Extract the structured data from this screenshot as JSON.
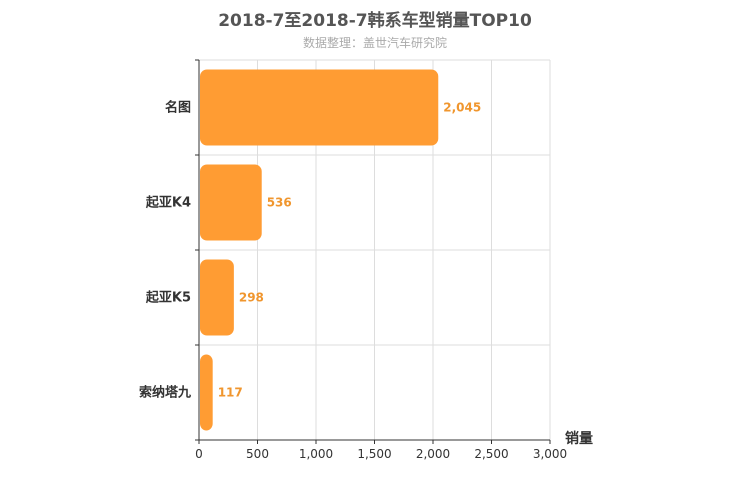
{
  "chart_data": {
    "type": "bar",
    "orientation": "horizontal",
    "title": "2018-7至2018-7韩系车型销量TOP10",
    "subtitle": "数据整理：盖世汽车研究院",
    "categories": [
      "名图",
      "起亚K4",
      "起亚K5",
      "索纳塔九"
    ],
    "values": [
      2045,
      536,
      298,
      117
    ],
    "value_labels": [
      "2,045",
      "536",
      "298",
      "117"
    ],
    "xlabel": "销量",
    "ylabel": "",
    "xlim": [
      0,
      3000
    ],
    "xticks": [
      0,
      500,
      1000,
      1500,
      2000,
      2500,
      3000
    ],
    "xtick_labels": [
      "0",
      "500",
      "1,000",
      "1,500",
      "2,000",
      "2,500",
      "3,000"
    ],
    "grid": true,
    "colors": {
      "bar": "#ff9c33",
      "label": "#f0962e",
      "grid": "#dddddd",
      "axis": "#333333",
      "title": "#555555",
      "subtitle": "#aaaaaa"
    }
  }
}
